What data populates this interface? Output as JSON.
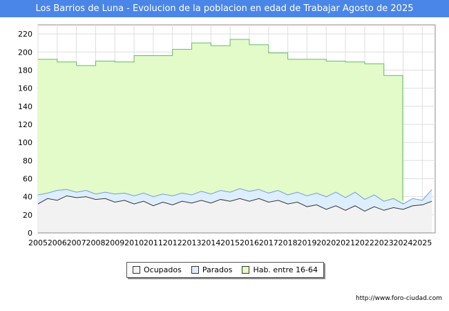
{
  "header": {
    "title": "Los Barrios de Luna - Evolucion de la poblacion en edad de Trabajar Agosto de 2025"
  },
  "footer": {
    "url": "http://www.foro-ciudad.com"
  },
  "chart_data": {
    "type": "area",
    "title": "Los Barrios de Luna - Evolucion de la poblacion en edad de Trabajar Agosto de 2025",
    "xlabel": "",
    "ylabel": "",
    "ylim": [
      0,
      230
    ],
    "xlim": [
      2005,
      2025.67
    ],
    "yticks": [
      0,
      20,
      40,
      60,
      80,
      100,
      120,
      140,
      160,
      180,
      200,
      220
    ],
    "xticks": [
      "2005",
      "2006",
      "2007",
      "2008",
      "2009",
      "2010",
      "2011",
      "2012",
      "2013",
      "2014",
      "2015",
      "2016",
      "2017",
      "2018",
      "2019",
      "2020",
      "2021",
      "2022",
      "2023",
      "2024",
      "2025"
    ],
    "grid": true,
    "legend_position": "bottom",
    "colors": {
      "ocupados_fill": "#f2f2f2",
      "parados_fill": "#ddeeff",
      "hab_fill": "#e2fbc8",
      "hab_line": "#66bb66",
      "parados_line": "#7799dd",
      "ocupados_line": "#333333"
    },
    "series": [
      {
        "name": "Hab. entre 16-64",
        "values": [
          [
            2005,
            192
          ],
          [
            2006,
            189
          ],
          [
            2007,
            185
          ],
          [
            2008,
            190
          ],
          [
            2009,
            189
          ],
          [
            2010,
            196
          ],
          [
            2011,
            196
          ],
          [
            2012,
            203
          ],
          [
            2013,
            210
          ],
          [
            2014,
            207
          ],
          [
            2015,
            214
          ],
          [
            2016,
            208
          ],
          [
            2017,
            199
          ],
          [
            2018,
            192
          ],
          [
            2019,
            192
          ],
          [
            2020,
            190
          ],
          [
            2021,
            189
          ],
          [
            2022,
            187
          ],
          [
            2023,
            174
          ]
        ]
      },
      {
        "name": "Parados",
        "values": [
          [
            2005.0,
            42
          ],
          [
            2005.5,
            44
          ],
          [
            2006.0,
            47
          ],
          [
            2006.5,
            48
          ],
          [
            2007.0,
            45
          ],
          [
            2007.5,
            47
          ],
          [
            2008.0,
            43
          ],
          [
            2008.5,
            45
          ],
          [
            2009.0,
            43
          ],
          [
            2009.5,
            44
          ],
          [
            2010.0,
            41
          ],
          [
            2010.5,
            44
          ],
          [
            2011.0,
            40
          ],
          [
            2011.5,
            43
          ],
          [
            2012.0,
            41
          ],
          [
            2012.5,
            44
          ],
          [
            2013.0,
            42
          ],
          [
            2013.5,
            46
          ],
          [
            2014.0,
            43
          ],
          [
            2014.5,
            47
          ],
          [
            2015.0,
            45
          ],
          [
            2015.5,
            49
          ],
          [
            2016.0,
            46
          ],
          [
            2016.5,
            48
          ],
          [
            2017.0,
            44
          ],
          [
            2017.5,
            47
          ],
          [
            2018.0,
            42
          ],
          [
            2018.5,
            45
          ],
          [
            2019.0,
            41
          ],
          [
            2019.5,
            44
          ],
          [
            2020.0,
            40
          ],
          [
            2020.5,
            45
          ],
          [
            2021.0,
            39
          ],
          [
            2021.5,
            45
          ],
          [
            2022.0,
            37
          ],
          [
            2022.5,
            42
          ],
          [
            2023.0,
            35
          ],
          [
            2023.5,
            38
          ],
          [
            2024.0,
            32
          ],
          [
            2024.5,
            38
          ],
          [
            2025.0,
            36
          ],
          [
            2025.5,
            48
          ]
        ]
      },
      {
        "name": "Ocupados",
        "values": [
          [
            2005.0,
            32
          ],
          [
            2005.5,
            38
          ],
          [
            2006.0,
            36
          ],
          [
            2006.5,
            41
          ],
          [
            2007.0,
            39
          ],
          [
            2007.5,
            40
          ],
          [
            2008.0,
            37
          ],
          [
            2008.5,
            38
          ],
          [
            2009.0,
            34
          ],
          [
            2009.5,
            36
          ],
          [
            2010.0,
            32
          ],
          [
            2010.5,
            35
          ],
          [
            2011.0,
            30
          ],
          [
            2011.5,
            34
          ],
          [
            2012.0,
            31
          ],
          [
            2012.5,
            35
          ],
          [
            2013.0,
            33
          ],
          [
            2013.5,
            36
          ],
          [
            2014.0,
            33
          ],
          [
            2014.5,
            37
          ],
          [
            2015.0,
            35
          ],
          [
            2015.5,
            38
          ],
          [
            2016.0,
            35
          ],
          [
            2016.5,
            38
          ],
          [
            2017.0,
            34
          ],
          [
            2017.5,
            36
          ],
          [
            2018.0,
            32
          ],
          [
            2018.5,
            34
          ],
          [
            2019.0,
            29
          ],
          [
            2019.5,
            31
          ],
          [
            2020.0,
            26
          ],
          [
            2020.5,
            30
          ],
          [
            2021.0,
            25
          ],
          [
            2021.5,
            30
          ],
          [
            2022.0,
            24
          ],
          [
            2022.5,
            29
          ],
          [
            2023.0,
            25
          ],
          [
            2023.5,
            28
          ],
          [
            2024.0,
            26
          ],
          [
            2024.5,
            30
          ],
          [
            2025.0,
            31
          ],
          [
            2025.5,
            35
          ]
        ]
      }
    ]
  }
}
